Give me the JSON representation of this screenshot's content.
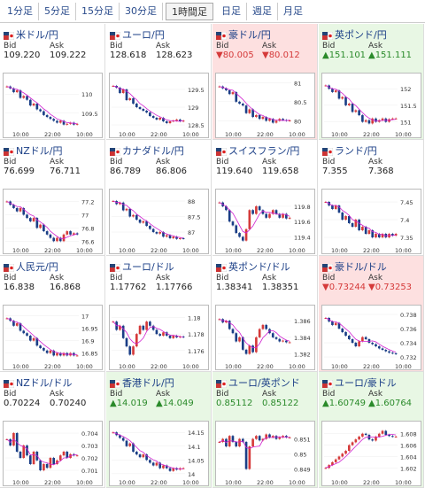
{
  "tabs": [
    {
      "label": "1分足",
      "active": false
    },
    {
      "label": "5分足",
      "active": false
    },
    {
      "label": "15分足",
      "active": false
    },
    {
      "label": "30分足",
      "active": false
    },
    {
      "label": "1時間足",
      "active": true
    },
    {
      "label": "日足",
      "active": false
    },
    {
      "label": "週足",
      "active": false
    },
    {
      "label": "月足",
      "active": false
    }
  ],
  "labels": {
    "bid": "Bid",
    "ask": "Ask"
  },
  "pairs": [
    {
      "name": "米ドル/円",
      "bid": "109.220",
      "ask": "109.222",
      "trend": "none",
      "flag": "us-jp-flag-icon",
      "yticks": [
        "110",
        "109.5"
      ],
      "xticks": [
        "10:00",
        "22:00",
        "10:00"
      ],
      "ylim": [
        109.1,
        110.4
      ],
      "candles": [
        110.2,
        110.15,
        110.05,
        110.1,
        109.9,
        109.95,
        109.85,
        109.7,
        109.75,
        109.6,
        109.55,
        109.45,
        109.4,
        109.35,
        109.3,
        109.25,
        109.3,
        109.2,
        109.22,
        109.25,
        109.2,
        109.22
      ]
    },
    {
      "name": "ユーロ/円",
      "bid": "128.618",
      "ask": "128.623",
      "trend": "none",
      "flag": "eu-jp-flag-icon",
      "yticks": [
        "129.5",
        "129",
        "128.5"
      ],
      "xticks": [
        "10:00",
        "22:00",
        "10:00"
      ],
      "ylim": [
        128.4,
        129.8
      ],
      "candles": [
        129.6,
        129.55,
        129.4,
        129.5,
        129.2,
        129.25,
        129.1,
        129.0,
        128.95,
        128.9,
        128.85,
        128.75,
        128.7,
        128.65,
        128.7,
        128.6,
        128.55,
        128.6,
        128.62,
        128.65,
        128.6,
        128.62
      ]
    },
    {
      "name": "豪ドル/円",
      "bid": "▼80.005",
      "ask": "▼80.012",
      "trend": "down",
      "flag": "au-jp-flag-icon",
      "yticks": [
        "81",
        "80.5",
        "80"
      ],
      "xticks": [
        "10:00",
        "22:00",
        "10:00"
      ],
      "ylim": [
        79.8,
        81.1
      ],
      "candles": [
        80.9,
        80.85,
        80.8,
        80.7,
        80.75,
        80.5,
        80.45,
        80.4,
        80.2,
        80.3,
        80.1,
        80.15,
        80.05,
        80.1,
        80.0,
        80.05,
        79.95,
        80.0,
        80.05,
        80.02,
        80.0,
        80.01
      ]
    },
    {
      "name": "英ポンド/円",
      "bid": "▲151.101",
      "ask": "▲151.111",
      "trend": "up",
      "flag": "gb-jp-flag-icon",
      "yticks": [
        "152",
        "151.5",
        "151"
      ],
      "xticks": [
        "10:00",
        "22:00",
        "10:00"
      ],
      "ylim": [
        150.8,
        152.3
      ],
      "candles": [
        152.1,
        152.0,
        151.9,
        151.95,
        151.7,
        151.75,
        151.5,
        151.55,
        151.3,
        151.35,
        151.2,
        151.0,
        151.05,
        150.95,
        151.1,
        151.0,
        151.05,
        151.1,
        151.0,
        151.08,
        151.1,
        151.1
      ]
    },
    {
      "name": "NZドル/円",
      "bid": "76.699",
      "ask": "76.711",
      "trend": "none",
      "flag": "nz-jp-flag-icon",
      "yticks": [
        "77.2",
        "77",
        "76.8",
        "76.6"
      ],
      "xticks": [
        "10:00",
        "22:00",
        "10:00"
      ],
      "ylim": [
        76.55,
        77.3
      ],
      "candles": [
        77.2,
        77.15,
        77.1,
        77.05,
        77.1,
        77.0,
        76.95,
        76.9,
        76.95,
        76.8,
        76.85,
        76.75,
        76.7,
        76.65,
        76.6,
        76.65,
        76.6,
        76.7,
        76.75,
        76.7,
        76.72,
        76.7
      ]
    },
    {
      "name": "カナダドル/円",
      "bid": "86.789",
      "ask": "86.806",
      "trend": "none",
      "flag": "ca-jp-flag-icon",
      "yticks": [
        "88",
        "87.5",
        "87"
      ],
      "xticks": [
        "10:00",
        "22:00",
        "10:00"
      ],
      "ylim": [
        86.6,
        88.2
      ],
      "candles": [
        88.0,
        87.9,
        87.95,
        87.7,
        87.75,
        87.5,
        87.55,
        87.4,
        87.3,
        87.35,
        87.2,
        87.1,
        87.0,
        86.95,
        87.0,
        86.85,
        86.9,
        86.8,
        86.85,
        86.78,
        86.8,
        86.79
      ]
    },
    {
      "name": "スイスフラン/円",
      "bid": "119.640",
      "ask": "119.658",
      "trend": "none",
      "flag": "ch-jp-flag-icon",
      "yticks": [
        "119.8",
        "119.6",
        "119.4"
      ],
      "xticks": [
        "10:00",
        "22:00",
        "10:00"
      ],
      "ylim": [
        119.3,
        119.95
      ],
      "candles": [
        119.85,
        119.8,
        119.75,
        119.6,
        119.55,
        119.45,
        119.4,
        119.35,
        119.5,
        119.75,
        119.7,
        119.8,
        119.75,
        119.7,
        119.65,
        119.7,
        119.75,
        119.7,
        119.65,
        119.7,
        119.64,
        119.65
      ]
    },
    {
      "name": "ランド/円",
      "bid": "7.355",
      "ask": "7.368",
      "trend": "none",
      "flag": "za-jp-flag-icon",
      "yticks": [
        "7.45",
        "7.4",
        "7.35"
      ],
      "xticks": [
        "10:00",
        "22:00",
        "10:00"
      ],
      "ylim": [
        7.33,
        7.47
      ],
      "candles": [
        7.45,
        7.44,
        7.43,
        7.44,
        7.42,
        7.4,
        7.41,
        7.39,
        7.38,
        7.4,
        7.37,
        7.38,
        7.36,
        7.37,
        7.35,
        7.36,
        7.35,
        7.36,
        7.35,
        7.36,
        7.355,
        7.36
      ]
    },
    {
      "name": "人民元/円",
      "bid": "16.838",
      "ask": "16.868",
      "trend": "none",
      "flag": "cn-jp-flag-icon",
      "yticks": [
        "17",
        "16.95",
        "16.9",
        "16.85"
      ],
      "xticks": [
        "10:00",
        "22:00",
        "10:00"
      ],
      "ylim": [
        16.82,
        17.02
      ],
      "candles": [
        16.99,
        16.98,
        16.96,
        16.97,
        16.94,
        16.93,
        16.92,
        16.9,
        16.91,
        16.88,
        16.87,
        16.86,
        16.85,
        16.86,
        16.84,
        16.85,
        16.84,
        16.85,
        16.84,
        16.85,
        16.84,
        16.84
      ]
    },
    {
      "name": "ユーロ/ドル",
      "bid": "1.17762",
      "ask": "1.17766",
      "trend": "none",
      "flag": "eu-us-flag-icon",
      "yticks": [
        "1.18",
        "1.178",
        "1.176"
      ],
      "xticks": [
        "10:00",
        "22:00",
        "10:00"
      ],
      "ylim": [
        1.1748,
        1.1808
      ],
      "candles": [
        1.1795,
        1.1785,
        1.179,
        1.1775,
        1.1765,
        1.1755,
        1.1765,
        1.178,
        1.179,
        1.1785,
        1.1795,
        1.179,
        1.1785,
        1.178,
        1.1778,
        1.1782,
        1.1778,
        1.1775,
        1.1778,
        1.1776,
        1.1777,
        1.1776
      ]
    },
    {
      "name": "英ポンド/ドル",
      "bid": "1.38341",
      "ask": "1.38351",
      "trend": "none",
      "flag": "gb-us-flag-icon",
      "yticks": [
        "1.386",
        "1.384",
        "1.382"
      ],
      "xticks": [
        "10:00",
        "22:00",
        "10:00"
      ],
      "ylim": [
        1.3812,
        1.3872
      ],
      "candles": [
        1.3862,
        1.3858,
        1.386,
        1.385,
        1.3845,
        1.3835,
        1.384,
        1.3825,
        1.382,
        1.383,
        1.3822,
        1.384,
        1.385,
        1.3855,
        1.385,
        1.3845,
        1.384,
        1.3838,
        1.3835,
        1.3836,
        1.3834,
        1.3834
      ]
    },
    {
      "name": "豪ドル/ドル",
      "bid": "▼0.73244",
      "ask": "▼0.73253",
      "trend": "down",
      "flag": "au-us-flag-icon",
      "yticks": [
        "0.738",
        "0.736",
        "0.734",
        "0.732"
      ],
      "xticks": [
        "10:00",
        "22:00",
        "10:00"
      ],
      "ylim": [
        0.7315,
        0.7385
      ],
      "candles": [
        0.7375,
        0.737,
        0.7365,
        0.7368,
        0.736,
        0.7355,
        0.735,
        0.7345,
        0.734,
        0.7335,
        0.7342,
        0.7348,
        0.7345,
        0.734,
        0.7338,
        0.7335,
        0.7332,
        0.733,
        0.7328,
        0.7326,
        0.7325,
        0.7324
      ]
    },
    {
      "name": "NZドル/ドル",
      "bid": "0.70224",
      "ask": "0.70240",
      "trend": "none",
      "flag": "nz-us-flag-icon",
      "yticks": [
        "0.704",
        "0.703",
        "0.702",
        "0.701"
      ],
      "xticks": [
        "10:00",
        "22:00",
        "10:00"
      ],
      "ylim": [
        0.7005,
        0.7045
      ],
      "candles": [
        0.7035,
        0.703,
        0.704,
        0.7025,
        0.702,
        0.703,
        0.7022,
        0.7015,
        0.7025,
        0.7018,
        0.701,
        0.7015,
        0.7012,
        0.702,
        0.7015,
        0.7018,
        0.7022,
        0.7025,
        0.702,
        0.7023,
        0.7022,
        0.7022
      ]
    },
    {
      "name": "香港ドル/円",
      "bid": "▲14.019",
      "ask": "▲14.049",
      "trend": "up",
      "flag": "hk-jp-flag-icon",
      "yticks": [
        "14.15",
        "14.1",
        "14.05",
        "14"
      ],
      "xticks": [
        "10:00",
        "22:00",
        "10:00"
      ],
      "ylim": [
        13.99,
        14.17
      ],
      "candles": [
        14.15,
        14.14,
        14.13,
        14.12,
        14.1,
        14.11,
        14.08,
        14.07,
        14.06,
        14.07,
        14.05,
        14.04,
        14.03,
        14.04,
        14.02,
        14.03,
        14.02,
        14.01,
        14.02,
        14.015,
        14.02,
        14.02
      ]
    },
    {
      "name": "ユーロ/英ポンド",
      "bid": "0.85112",
      "ask": "0.85122",
      "trend": "up",
      "flag": "eu-gb-flag-icon",
      "yticks": [
        "0.851",
        "0.85",
        "0.849"
      ],
      "xticks": [
        "10:00",
        "22:00",
        "10:00"
      ],
      "ylim": [
        0.8485,
        0.8518
      ],
      "candles": [
        0.8508,
        0.851,
        0.8505,
        0.8512,
        0.8508,
        0.8505,
        0.851,
        0.8508,
        0.849,
        0.8505,
        0.851,
        0.8512,
        0.8509,
        0.851,
        0.8513,
        0.8511,
        0.8512,
        0.851,
        0.8511,
        0.8512,
        0.8511,
        0.8511
      ]
    },
    {
      "name": "ユーロ/豪ドル",
      "bid": "▲1.60749",
      "ask": "▲1.60764",
      "trend": "up",
      "flag": "eu-au-flag-icon",
      "yticks": [
        "1.608",
        "1.606",
        "1.604",
        "1.602"
      ],
      "xticks": [
        "10:00",
        "22:00",
        "10:00"
      ],
      "ylim": [
        1.6005,
        1.6092
      ],
      "candles": [
        1.602,
        1.6025,
        1.603,
        1.6035,
        1.604,
        1.6045,
        1.605,
        1.606,
        1.6065,
        1.607,
        1.6075,
        1.608,
        1.6078,
        1.607,
        1.6068,
        1.6075,
        1.608,
        1.6085,
        1.6078,
        1.6076,
        1.6075,
        1.6075
      ]
    }
  ],
  "colors": {
    "bull": "#d53a3a",
    "bear": "#1a3e86",
    "ma": "#d020d0",
    "tab_text": "#2b4c8c",
    "up_bg": "#e8f7e4",
    "down_bg": "#fde0e0"
  }
}
